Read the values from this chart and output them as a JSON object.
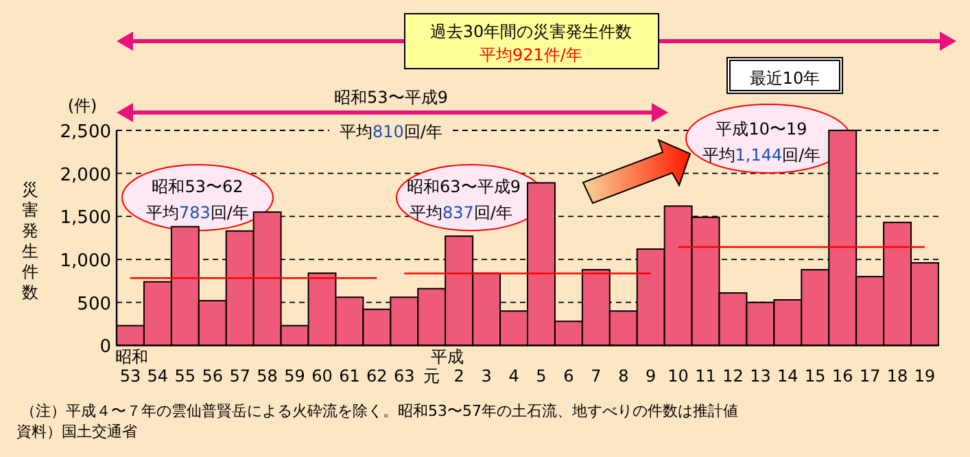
{
  "chart_data": {
    "type": "bar",
    "title": "過去30年間の災害発生件数",
    "subtitle": "平均921件/年",
    "ylabel": "災害発生件数",
    "categories": [
      "53",
      "54",
      "55",
      "56",
      "57",
      "58",
      "59",
      "60",
      "61",
      "62",
      "63",
      "元",
      "2",
      "3",
      "4",
      "5",
      "6",
      "7",
      "8",
      "9",
      "10",
      "11",
      "12",
      "13",
      "14",
      "15",
      "16",
      "17",
      "18",
      "19"
    ],
    "series": [
      {
        "color": "#ee5a78",
        "values": [
          230,
          740,
          1380,
          520,
          1330,
          1550,
          230,
          840,
          560,
          420,
          560,
          660,
          1270,
          840,
          400,
          1890,
          280,
          880,
          400,
          1120,
          1620,
          1490,
          610,
          500,
          530,
          880,
          2500,
          800,
          1430,
          960
        ]
      },
      {
        "type": "line",
        "color": "#ff0000",
        "values": [
          783,
          783,
          783,
          783,
          783,
          783,
          783,
          783,
          783,
          783,
          null,
          null,
          null,
          null,
          null,
          null,
          null,
          null,
          null,
          null,
          null,
          null,
          null,
          null,
          null,
          null,
          null,
          null,
          null,
          null
        ]
      },
      {
        "type": "line",
        "color": "#ff0000",
        "values": [
          null,
          null,
          null,
          null,
          null,
          null,
          null,
          null,
          null,
          null,
          837,
          837,
          837,
          837,
          837,
          837,
          837,
          837,
          837,
          837,
          null,
          null,
          null,
          null,
          null,
          null,
          null,
          null,
          null,
          null
        ]
      },
      {
        "type": "line",
        "color": "#ff0000",
        "values": [
          null,
          null,
          null,
          null,
          null,
          null,
          null,
          null,
          null,
          null,
          null,
          null,
          null,
          null,
          null,
          null,
          null,
          null,
          null,
          null,
          1144,
          1144,
          1144,
          1144,
          1144,
          1144,
          1144,
          1144,
          1144,
          1144
        ]
      }
    ],
    "ylim": [
      0,
      2500
    ],
    "yticks": [
      0,
      {
        "value": 500,
        "label": "500"
      },
      {
        "value": 1000,
        "label": "1,000"
      },
      {
        "value": 1500,
        "label": "1,500"
      },
      {
        "value": 2000,
        "label": "2,000"
      },
      {
        "value": 2500,
        "label": "2,500"
      }
    ],
    "grid": "y",
    "annotations": [
      "最近10年",
      "昭和53〜平成9",
      "平均810回/年",
      "昭和53〜62",
      "平均783回/年",
      "昭和63〜平成9",
      "平均837回/年",
      "平成10〜19",
      "平均1,144回/年",
      "昭和",
      "平成",
      "(件)",
      "（注）平成４〜７年の雲仙普賢岳による火砕流を除く。昭和53〜57年の土石流、地すべりの件数は推計値",
      "資料）国土交通省"
    ]
  }
}
